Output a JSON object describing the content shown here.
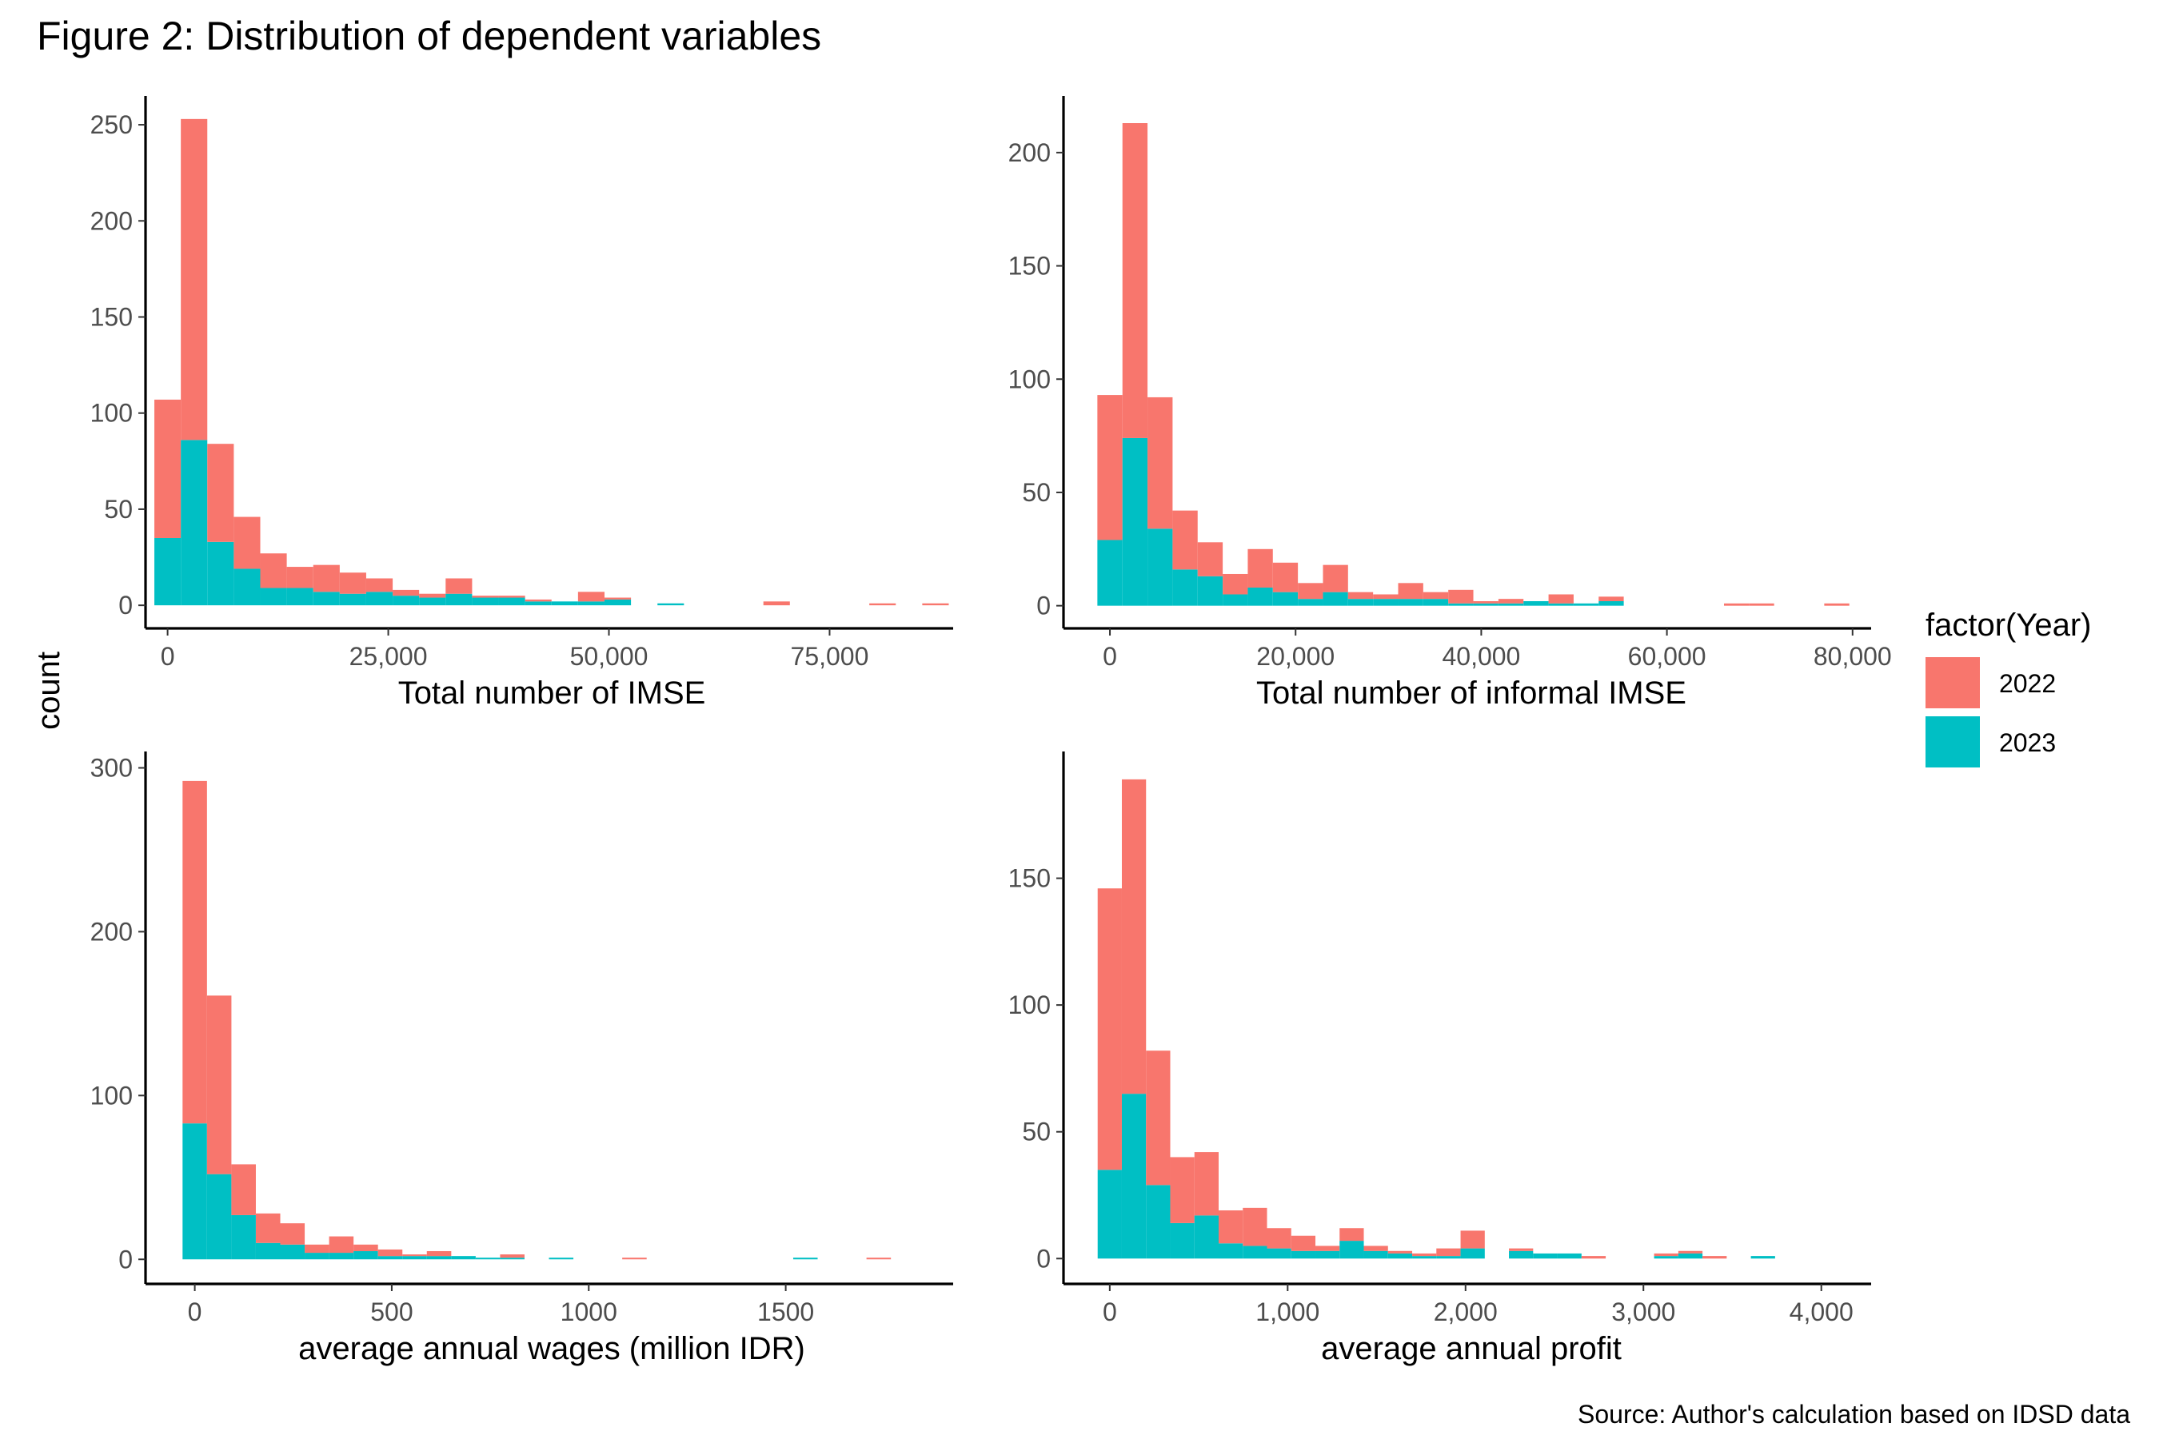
{
  "title": "Figure 2: Distribution of dependent variables",
  "caption": "Source: Author's calculation based on IDSD data",
  "shared_ylabel": "count",
  "legend": {
    "title": "factor(Year)",
    "entries": [
      {
        "label": "2022",
        "color": "#F8766D"
      },
      {
        "label": "2023",
        "color": "#00BFC4"
      }
    ]
  },
  "chart_data": [
    {
      "type": "bar",
      "stacked": true,
      "xlabel": "Total number of IMSE",
      "ylabel": "count",
      "xlim": [
        -2500,
        89000
      ],
      "ylim": [
        -12,
        265
      ],
      "xticks": [
        0,
        25000,
        50000,
        75000
      ],
      "xtick_labels": [
        "0",
        "25,000",
        "50,000",
        "75,000"
      ],
      "yticks": [
        0,
        50,
        100,
        150,
        200,
        250
      ],
      "bin_start": -1500,
      "bin_width": 3000,
      "series": [
        {
          "name": "2023",
          "values": [
            35,
            86,
            33,
            19,
            9,
            9,
            7,
            6,
            7,
            5,
            4,
            6,
            4,
            4,
            2,
            2,
            2,
            3,
            0,
            1,
            0,
            0,
            0,
            0,
            0,
            0,
            0,
            0,
            0,
            0
          ]
        },
        {
          "name": "2022",
          "values": [
            72,
            167,
            51,
            27,
            18,
            11,
            14,
            11,
            7,
            3,
            2,
            8,
            1,
            1,
            1,
            0,
            5,
            1,
            0,
            0,
            0,
            0,
            0,
            2,
            0,
            0,
            0,
            1,
            0,
            1
          ]
        }
      ]
    },
    {
      "type": "bar",
      "stacked": true,
      "xlabel": "Total number of informal IMSE",
      "ylabel": "count",
      "xlim": [
        -5000,
        82000
      ],
      "ylim": [
        -10,
        225
      ],
      "xticks": [
        0,
        20000,
        40000,
        60000,
        80000
      ],
      "xtick_labels": [
        "0",
        "20,000",
        "40,000",
        "60,000",
        "80,000"
      ],
      "yticks": [
        0,
        50,
        100,
        150,
        200
      ],
      "bin_start": -1350,
      "bin_width": 2700,
      "series": [
        {
          "name": "2023",
          "values": [
            29,
            74,
            34,
            16,
            13,
            5,
            8,
            6,
            3,
            6,
            3,
            3,
            3,
            3,
            1,
            1,
            1,
            2,
            1,
            1,
            2,
            0,
            0,
            0,
            0,
            0,
            0,
            0,
            0,
            0
          ]
        },
        {
          "name": "2022",
          "values": [
            64,
            139,
            58,
            26,
            15,
            9,
            17,
            13,
            7,
            12,
            3,
            2,
            7,
            3,
            6,
            1,
            2,
            0,
            4,
            0,
            2,
            0,
            0,
            0,
            0,
            1,
            1,
            0,
            0,
            1
          ]
        }
      ]
    },
    {
      "type": "bar",
      "stacked": true,
      "xlabel": "average annual wages (million IDR)",
      "ylabel": "count",
      "xlim": [
        -125,
        1925
      ],
      "ylim": [
        -15,
        310
      ],
      "xticks": [
        0,
        500,
        1000,
        1500
      ],
      "xtick_labels": [
        "0",
        "500",
        "1000",
        "1500"
      ],
      "yticks": [
        0,
        100,
        200,
        300
      ],
      "bin_start": -31,
      "bin_width": 62,
      "series": [
        {
          "name": "2023",
          "values": [
            83,
            52,
            27,
            10,
            9,
            4,
            4,
            5,
            2,
            2,
            2,
            2,
            1,
            1,
            0,
            1,
            0,
            0,
            0,
            0,
            0,
            0,
            0,
            0,
            0,
            1,
            0,
            0,
            0,
            0
          ]
        },
        {
          "name": "2022",
          "values": [
            209,
            109,
            31,
            18,
            13,
            5,
            10,
            4,
            4,
            1,
            3,
            0,
            0,
            2,
            0,
            0,
            0,
            0,
            1,
            0,
            0,
            0,
            0,
            0,
            0,
            0,
            0,
            0,
            1,
            0
          ]
        }
      ]
    },
    {
      "type": "bar",
      "stacked": true,
      "xlabel": "average annual profit",
      "ylabel": "count",
      "xlim": [
        -260,
        4280
      ],
      "ylim": [
        -10,
        200
      ],
      "xticks": [
        0,
        1000,
        2000,
        3000,
        4000
      ],
      "xtick_labels": [
        "0",
        "1,000",
        "2,000",
        "3,000",
        "4,000"
      ],
      "yticks": [
        0,
        50,
        100,
        150
      ],
      "bin_start": -68,
      "bin_width": 136,
      "series": [
        {
          "name": "2023",
          "values": [
            35,
            65,
            29,
            14,
            17,
            6,
            5,
            4,
            3,
            3,
            7,
            3,
            2,
            1,
            1,
            4,
            0,
            3,
            2,
            2,
            0,
            0,
            0,
            1,
            2,
            0,
            0,
            1,
            0,
            0
          ]
        },
        {
          "name": "2022",
          "values": [
            111,
            124,
            53,
            26,
            25,
            13,
            15,
            8,
            6,
            2,
            5,
            2,
            1,
            1,
            3,
            7,
            0,
            1,
            0,
            0,
            1,
            0,
            0,
            1,
            1,
            1,
            0,
            0,
            0,
            0
          ]
        }
      ]
    }
  ]
}
